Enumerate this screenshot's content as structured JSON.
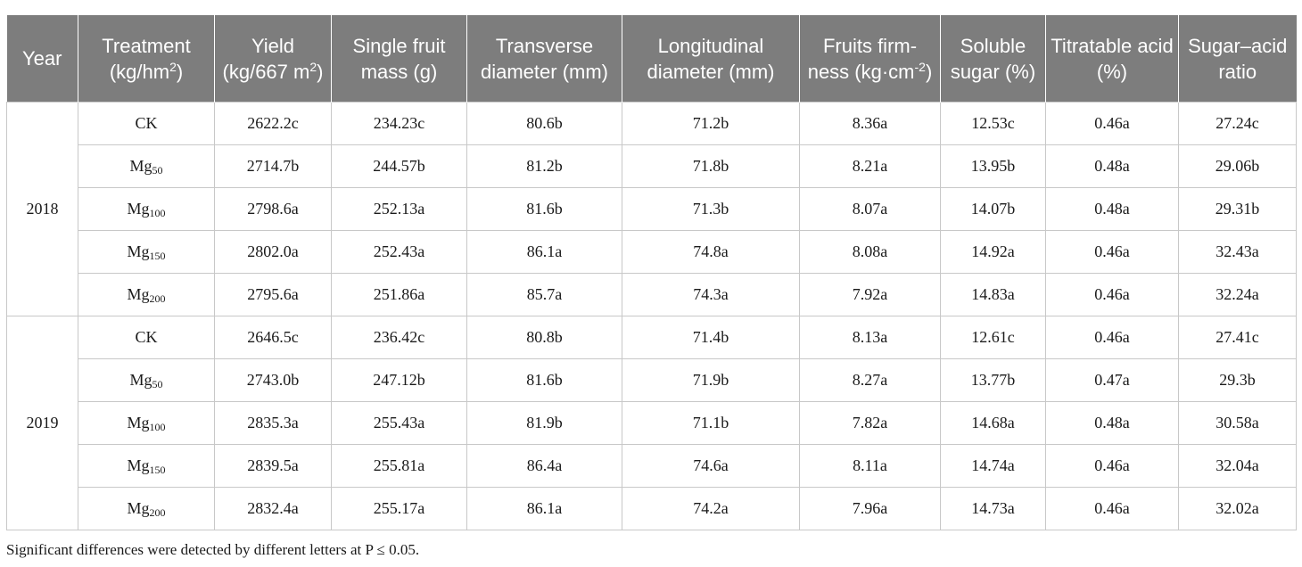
{
  "header": {
    "year": "Year",
    "treatment": "Treatment",
    "treatment_unit": "(kg/hm",
    "treatment_unit_sup": "2",
    "treatment_unit_end": ")",
    "yield": "Yield (kg/667 m",
    "yield_sup": "2",
    "yield_end": ")",
    "single_fruit_mass": "Single fruit mass (g)",
    "transverse_diameter": "Transverse diameter (mm)",
    "longitudinal_diameter": "Longitudinal diameter (mm)",
    "fruits_firmness": "Fruits firm- ness (kg·cm",
    "fruits_firmness_sup": "-2",
    "fruits_firmness_end": ")",
    "soluble_sugar": "Soluble sugar (%)",
    "titratable_acid": "Titratable acid (%)",
    "sugar_acid_ratio": "Sugar–acid ratio"
  },
  "groups": [
    {
      "year": "2018",
      "rows": [
        {
          "treat": "CK",
          "sub": "",
          "yield": "2622.2c",
          "mass": "234.23c",
          "trans": "80.6b",
          "longi": "71.2b",
          "firm": "8.36a",
          "sugar": "12.53c",
          "acid": "0.46a",
          "ratio": "27.24c"
        },
        {
          "treat": "Mg",
          "sub": "50",
          "yield": "2714.7b",
          "mass": "244.57b",
          "trans": "81.2b",
          "longi": "71.8b",
          "firm": "8.21a",
          "sugar": "13.95b",
          "acid": "0.48a",
          "ratio": "29.06b"
        },
        {
          "treat": "Mg",
          "sub": "100",
          "yield": "2798.6a",
          "mass": "252.13a",
          "trans": "81.6b",
          "longi": "71.3b",
          "firm": "8.07a",
          "sugar": "14.07b",
          "acid": "0.48a",
          "ratio": "29.31b"
        },
        {
          "treat": "Mg",
          "sub": "150",
          "yield": "2802.0a",
          "mass": "252.43a",
          "trans": "86.1a",
          "longi": "74.8a",
          "firm": "8.08a",
          "sugar": "14.92a",
          "acid": "0.46a",
          "ratio": "32.43a"
        },
        {
          "treat": "Mg",
          "sub": "200",
          "yield": "2795.6a",
          "mass": "251.86a",
          "trans": "85.7a",
          "longi": "74.3a",
          "firm": "7.92a",
          "sugar": "14.83a",
          "acid": "0.46a",
          "ratio": "32.24a"
        }
      ]
    },
    {
      "year": "2019",
      "rows": [
        {
          "treat": "CK",
          "sub": "",
          "yield": "2646.5c",
          "mass": "236.42c",
          "trans": "80.8b",
          "longi": "71.4b",
          "firm": "8.13a",
          "sugar": "12.61c",
          "acid": "0.46a",
          "ratio": "27.41c"
        },
        {
          "treat": "Mg",
          "sub": "50",
          "yield": "2743.0b",
          "mass": "247.12b",
          "trans": "81.6b",
          "longi": "71.9b",
          "firm": "8.27a",
          "sugar": "13.77b",
          "acid": "0.47a",
          "ratio": "29.3b"
        },
        {
          "treat": "Mg",
          "sub": "100",
          "yield": "2835.3a",
          "mass": "255.43a",
          "trans": "81.9b",
          "longi": "71.1b",
          "firm": "7.82a",
          "sugar": "14.68a",
          "acid": "0.48a",
          "ratio": "30.58a"
        },
        {
          "treat": "Mg",
          "sub": "150",
          "yield": "2839.5a",
          "mass": "255.81a",
          "trans": "86.4a",
          "longi": "74.6a",
          "firm": "8.11a",
          "sugar": "14.74a",
          "acid": "0.46a",
          "ratio": "32.04a"
        },
        {
          "treat": "Mg",
          "sub": "200",
          "yield": "2832.4a",
          "mass": "255.17a",
          "trans": "86.1a",
          "longi": "74.2a",
          "firm": "7.96a",
          "sugar": "14.73a",
          "acid": "0.46a",
          "ratio": "32.02a"
        }
      ]
    }
  ],
  "footnote": "Significant differences were detected by different letters at P ≤ 0.05."
}
